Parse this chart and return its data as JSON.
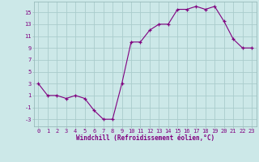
{
  "x": [
    0,
    1,
    2,
    3,
    4,
    5,
    6,
    7,
    8,
    9,
    10,
    11,
    12,
    13,
    14,
    15,
    16,
    17,
    18,
    19,
    20,
    21,
    22,
    23
  ],
  "y": [
    3,
    1,
    1,
    0.5,
    1,
    0.5,
    -1.5,
    -3,
    -3,
    3,
    10,
    10,
    12,
    13,
    13,
    15.5,
    15.5,
    16,
    15.5,
    16,
    13.5,
    10.5,
    9,
    9
  ],
  "line_color": "#800080",
  "marker": "+",
  "bg_color": "#cce8e8",
  "grid_color": "#aacccc",
  "xlabel": "Windchill (Refroidissement éolien,°C)",
  "xlabel_color": "#800080",
  "tick_color": "#800080",
  "yticks": [
    -3,
    -1,
    1,
    3,
    5,
    7,
    9,
    11,
    13,
    15
  ],
  "xticks": [
    0,
    1,
    2,
    3,
    4,
    5,
    6,
    7,
    8,
    9,
    10,
    11,
    12,
    13,
    14,
    15,
    16,
    17,
    18,
    19,
    20,
    21,
    22,
    23
  ],
  "ylim": [
    -4.2,
    16.8
  ],
  "xlim": [
    -0.5,
    23.5
  ],
  "tick_fontsize": 5.0,
  "xlabel_fontsize": 5.5
}
